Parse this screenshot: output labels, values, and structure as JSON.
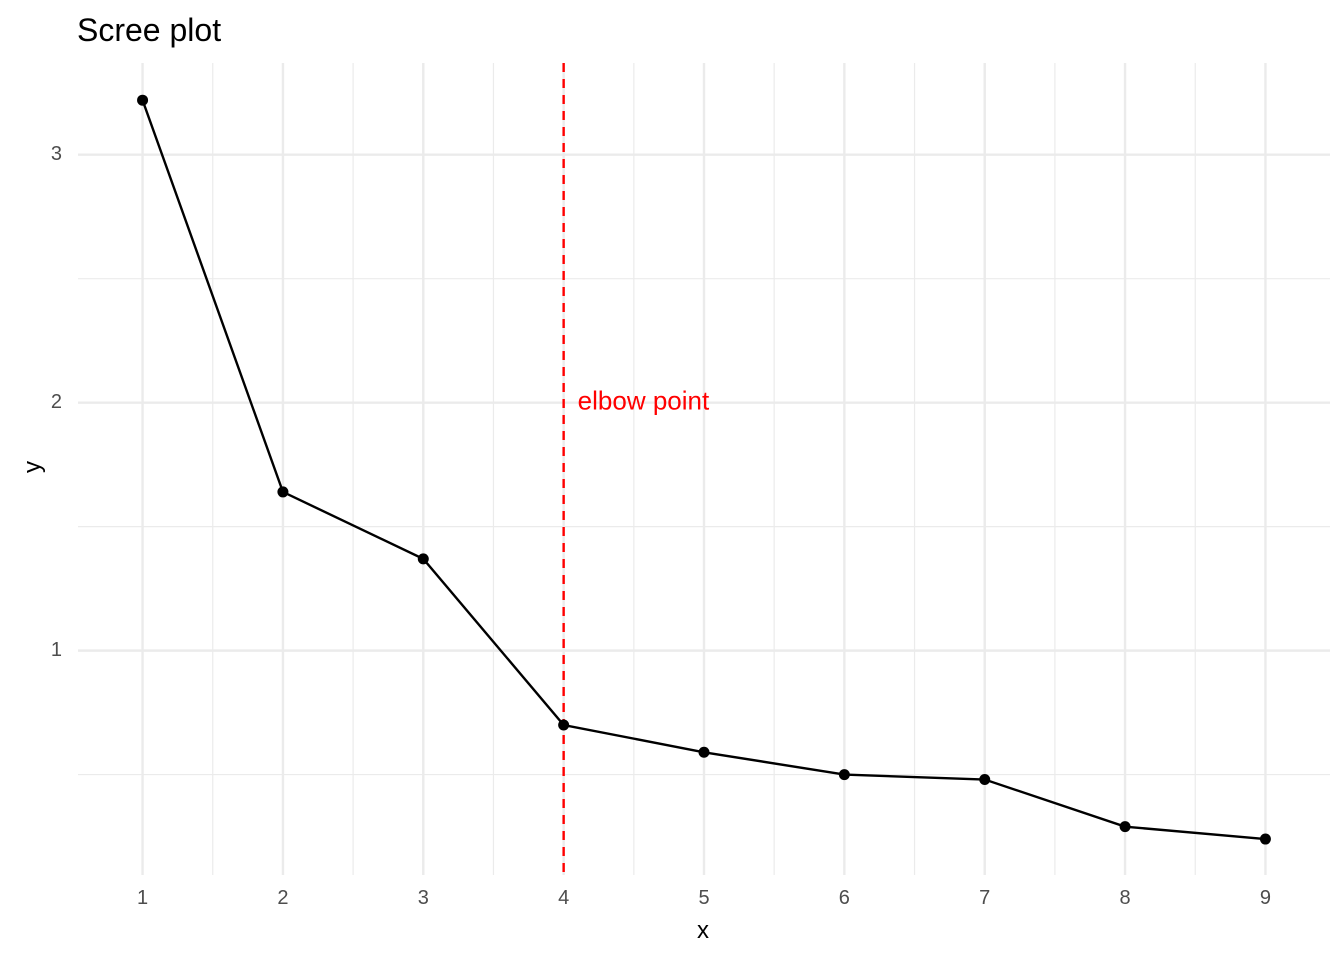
{
  "chart_data": {
    "type": "line",
    "title": "Scree plot",
    "xlabel": "x",
    "ylabel": "y",
    "x": [
      1,
      2,
      3,
      4,
      5,
      6,
      7,
      8,
      9
    ],
    "y": [
      3.22,
      1.64,
      1.37,
      0.7,
      0.59,
      0.5,
      0.48,
      0.29,
      0.24
    ],
    "x_ticks": [
      "1",
      "2",
      "3",
      "4",
      "5",
      "6",
      "7",
      "8",
      "9"
    ],
    "y_ticks": [
      "1",
      "2",
      "3"
    ],
    "xlim": [
      0.54,
      9.46
    ],
    "ylim": [
      0.095,
      3.37
    ],
    "grid": true,
    "legend": "none",
    "series_color": "#000000",
    "vline": {
      "x": 4,
      "color": "#ff0000",
      "style": "dashed"
    },
    "annotation": {
      "text": "elbow point",
      "x": 4.1,
      "y": 2,
      "color": "#ff0000"
    }
  }
}
